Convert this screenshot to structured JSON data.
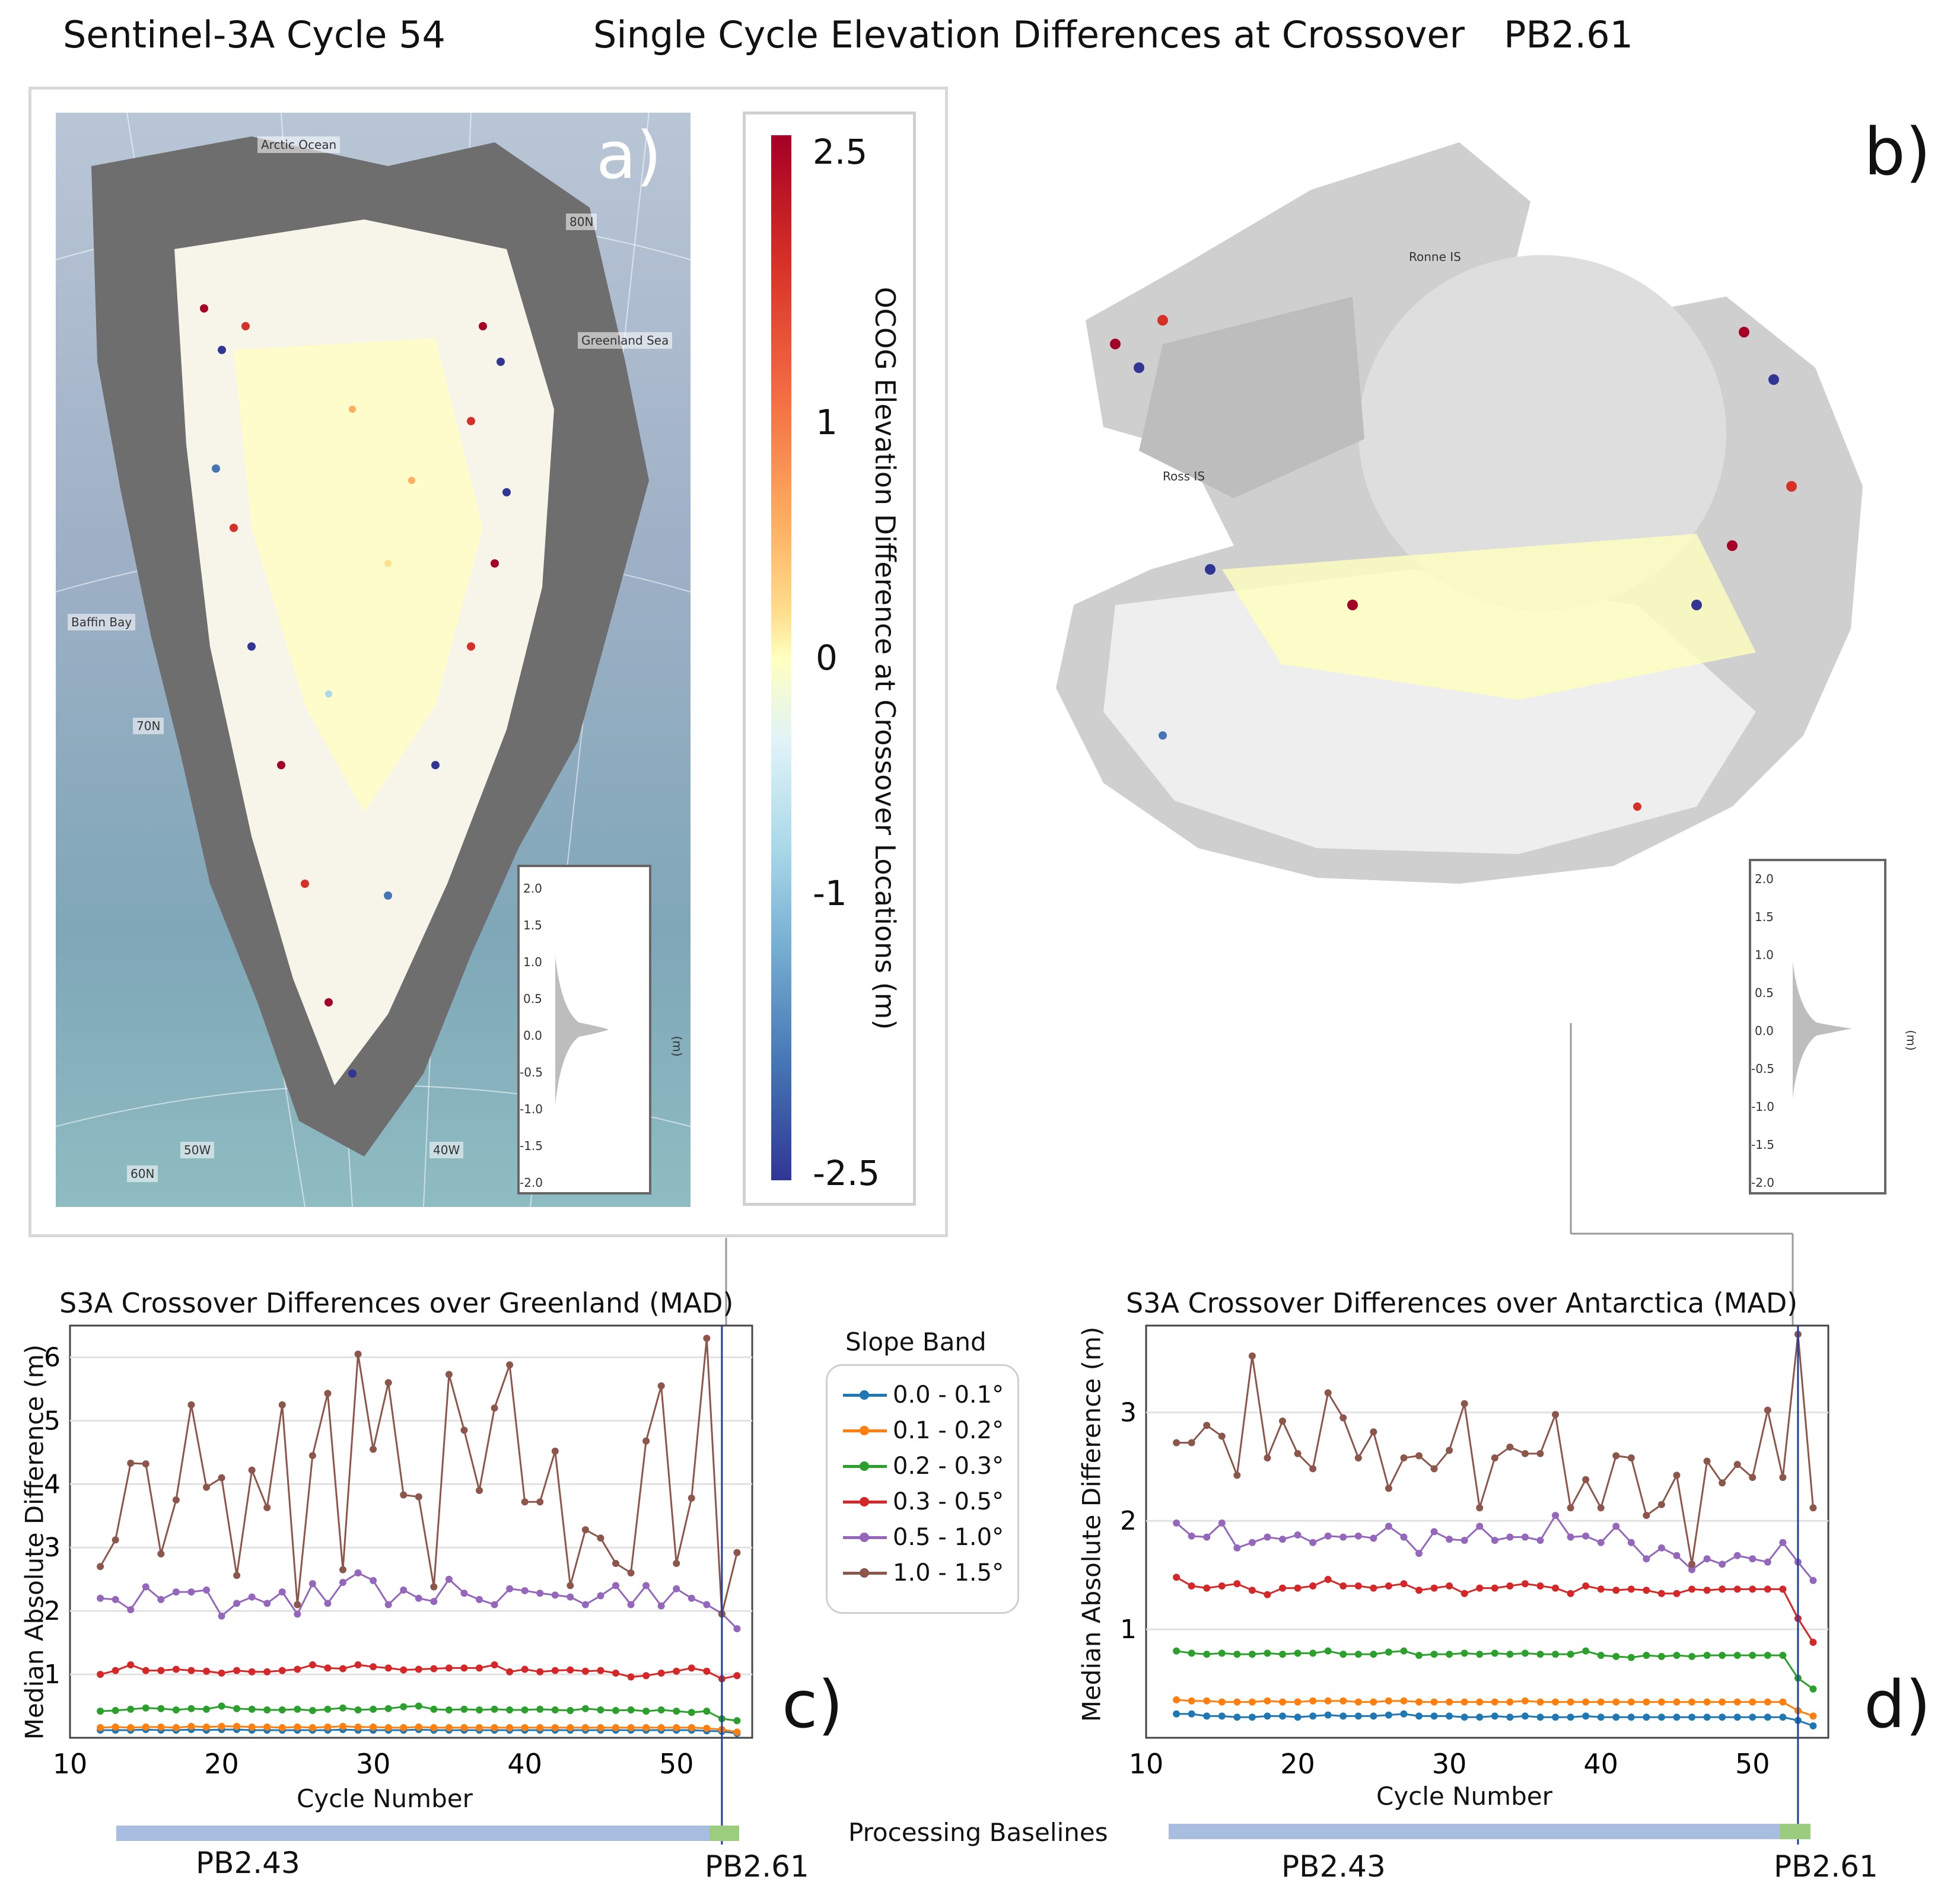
{
  "header": {
    "left": "Sentinel-3A Cycle 54",
    "center": "Single Cycle Elevation Differences at Crossover",
    "right": "PB2.61"
  },
  "panels": {
    "a": "a)",
    "b": "b)",
    "c": "c)",
    "d": "d)"
  },
  "colorbar": {
    "title": "OCOG Elevation Difference at Crossover Locations (m)",
    "ticks": [
      "2.5",
      "1",
      "0",
      "-1",
      "-2.5"
    ],
    "colors": [
      "#a50026",
      "#d73027",
      "#fdae61",
      "#ffffbf",
      "#abd9e9",
      "#4575b4",
      "#313695"
    ]
  },
  "map_a": {
    "labels": {
      "arctic": "Arctic Ocean",
      "greenland_sea": "Greenland Sea",
      "baffin": "Baffin Bay",
      "lat80": "80N",
      "lat70": "70N",
      "lat60": "60N",
      "lon50": "50W",
      "lon40": "40W"
    }
  },
  "map_b": {
    "labels": {
      "ronne": "Ronne IS",
      "ross": "Ross IS"
    }
  },
  "histogram": {
    "ticks": [
      "2.0",
      "1.5",
      "1.0",
      "0.5",
      "0.0",
      "-0.5",
      "-1.0",
      "-1.5",
      "-2.0"
    ],
    "unit": "(m)"
  },
  "legend": {
    "title": "Slope Band",
    "items": [
      {
        "label": "0.0 - 0.1°",
        "color": "#1f77b4"
      },
      {
        "label": "0.1 - 0.2°",
        "color": "#ff7f0e"
      },
      {
        "label": "0.2 - 0.3°",
        "color": "#2ca02c"
      },
      {
        "label": "0.3 - 0.5°",
        "color": "#d62728"
      },
      {
        "label": "0.5 - 1.0°",
        "color": "#9467bd"
      },
      {
        "label": "1.0 - 1.5°",
        "color": "#8c564b"
      }
    ]
  },
  "baselines": {
    "title": "Processing Baselines",
    "pb243": "PB2.43",
    "pb261": "PB2.61",
    "pb243_color": "#a9bde0",
    "pb261_color": "#9ccc7e"
  },
  "chart_data": [
    {
      "type": "line",
      "title": "S3A Crossover Differences over Greenland (MAD)",
      "xlabel": "Cycle Number",
      "ylabel": "Median Absolute Difference (m)",
      "xlim": [
        10,
        55
      ],
      "ylim": [
        0,
        6.5
      ],
      "xticks": [
        10,
        20,
        30,
        40,
        50
      ],
      "yticks": [
        1,
        2,
        3,
        4,
        5,
        6
      ],
      "baseline_change_cycle": 53,
      "x": [
        12,
        13,
        14,
        15,
        16,
        17,
        18,
        19,
        20,
        21,
        22,
        23,
        24,
        25,
        26,
        27,
        28,
        29,
        30,
        31,
        32,
        33,
        34,
        35,
        36,
        37,
        38,
        39,
        40,
        41,
        42,
        43,
        44,
        45,
        46,
        47,
        48,
        49,
        50,
        51,
        52,
        53,
        54
      ],
      "series": [
        {
          "name": "0.0 - 0.1°",
          "values": [
            0.12,
            0.12,
            0.12,
            0.13,
            0.12,
            0.12,
            0.13,
            0.12,
            0.13,
            0.13,
            0.12,
            0.12,
            0.12,
            0.12,
            0.12,
            0.12,
            0.13,
            0.12,
            0.12,
            0.12,
            0.12,
            0.13,
            0.12,
            0.12,
            0.12,
            0.12,
            0.12,
            0.12,
            0.12,
            0.12,
            0.12,
            0.12,
            0.12,
            0.12,
            0.12,
            0.12,
            0.12,
            0.12,
            0.12,
            0.12,
            0.11,
            0.1,
            0.07
          ]
        },
        {
          "name": "0.1 - 0.2°",
          "values": [
            0.16,
            0.17,
            0.16,
            0.17,
            0.17,
            0.16,
            0.18,
            0.17,
            0.18,
            0.18,
            0.17,
            0.17,
            0.16,
            0.17,
            0.16,
            0.17,
            0.18,
            0.17,
            0.17,
            0.16,
            0.16,
            0.17,
            0.16,
            0.16,
            0.16,
            0.16,
            0.16,
            0.16,
            0.16,
            0.16,
            0.16,
            0.16,
            0.16,
            0.16,
            0.16,
            0.16,
            0.16,
            0.16,
            0.16,
            0.16,
            0.15,
            0.13,
            0.09
          ]
        },
        {
          "name": "0.2 - 0.3°",
          "values": [
            0.42,
            0.43,
            0.45,
            0.47,
            0.46,
            0.44,
            0.46,
            0.45,
            0.5,
            0.46,
            0.45,
            0.44,
            0.44,
            0.45,
            0.43,
            0.45,
            0.47,
            0.44,
            0.45,
            0.46,
            0.49,
            0.5,
            0.45,
            0.44,
            0.45,
            0.44,
            0.45,
            0.44,
            0.44,
            0.45,
            0.44,
            0.43,
            0.46,
            0.44,
            0.43,
            0.44,
            0.42,
            0.44,
            0.42,
            0.4,
            0.42,
            0.3,
            0.27
          ]
        },
        {
          "name": "0.3 - 0.5°",
          "values": [
            1.0,
            1.06,
            1.15,
            1.06,
            1.06,
            1.08,
            1.06,
            1.05,
            1.02,
            1.06,
            1.04,
            1.04,
            1.06,
            1.08,
            1.15,
            1.1,
            1.09,
            1.15,
            1.12,
            1.1,
            1.07,
            1.08,
            1.09,
            1.1,
            1.1,
            1.1,
            1.15,
            1.04,
            1.08,
            1.04,
            1.06,
            1.07,
            1.05,
            1.06,
            1.02,
            0.96,
            0.98,
            1.02,
            1.05,
            1.1,
            1.05,
            0.93,
            0.98
          ]
        },
        {
          "name": "0.5 - 1.0°",
          "values": [
            2.2,
            2.18,
            2.02,
            2.38,
            2.18,
            2.3,
            2.3,
            2.33,
            1.92,
            2.12,
            2.22,
            2.12,
            2.3,
            1.95,
            2.43,
            2.12,
            2.45,
            2.6,
            2.48,
            2.1,
            2.33,
            2.2,
            2.15,
            2.5,
            2.28,
            2.18,
            2.1,
            2.35,
            2.32,
            2.28,
            2.25,
            2.22,
            2.1,
            2.24,
            2.4,
            2.1,
            2.4,
            2.08,
            2.35,
            2.2,
            2.1,
            1.96,
            1.72
          ]
        },
        {
          "name": "1.0 - 1.5°",
          "values": [
            2.7,
            3.12,
            4.33,
            4.32,
            2.9,
            3.75,
            5.25,
            3.95,
            4.1,
            2.56,
            4.22,
            3.63,
            5.25,
            2.1,
            4.45,
            5.43,
            2.65,
            6.05,
            4.55,
            5.6,
            3.83,
            3.8,
            2.38,
            5.73,
            4.85,
            3.9,
            5.2,
            5.88,
            3.72,
            3.72,
            4.52,
            2.4,
            3.28,
            3.15,
            2.75,
            2.6,
            4.68,
            5.55,
            2.75,
            3.78,
            6.3,
            1.95,
            2.92
          ]
        }
      ]
    },
    {
      "type": "line",
      "title": "S3A Crossover Differences over Antarctica (MAD)",
      "xlabel": "Cycle Number",
      "ylabel": "Median Absolute Difference (m)",
      "xlim": [
        10,
        55
      ],
      "ylim": [
        0,
        3.8
      ],
      "xticks": [
        10,
        20,
        30,
        40,
        50
      ],
      "yticks": [
        1,
        2,
        3
      ],
      "baseline_change_cycle": 53,
      "x": [
        12,
        13,
        14,
        15,
        16,
        17,
        18,
        19,
        20,
        21,
        22,
        23,
        24,
        25,
        26,
        27,
        28,
        29,
        30,
        31,
        32,
        33,
        34,
        35,
        36,
        37,
        38,
        39,
        40,
        41,
        42,
        43,
        44,
        45,
        46,
        47,
        48,
        49,
        50,
        51,
        52,
        53,
        54
      ],
      "series": [
        {
          "name": "0.0 - 0.1°",
          "values": [
            0.22,
            0.22,
            0.2,
            0.2,
            0.19,
            0.19,
            0.2,
            0.2,
            0.19,
            0.2,
            0.21,
            0.2,
            0.2,
            0.2,
            0.21,
            0.22,
            0.2,
            0.2,
            0.2,
            0.19,
            0.19,
            0.2,
            0.19,
            0.2,
            0.19,
            0.19,
            0.19,
            0.2,
            0.19,
            0.19,
            0.19,
            0.19,
            0.19,
            0.19,
            0.19,
            0.19,
            0.19,
            0.19,
            0.19,
            0.19,
            0.19,
            0.16,
            0.11
          ]
        },
        {
          "name": "0.1 - 0.2°",
          "values": [
            0.35,
            0.34,
            0.34,
            0.33,
            0.33,
            0.33,
            0.34,
            0.33,
            0.33,
            0.34,
            0.34,
            0.34,
            0.33,
            0.33,
            0.34,
            0.34,
            0.33,
            0.33,
            0.33,
            0.33,
            0.33,
            0.33,
            0.33,
            0.34,
            0.33,
            0.33,
            0.33,
            0.33,
            0.33,
            0.33,
            0.33,
            0.33,
            0.33,
            0.33,
            0.33,
            0.33,
            0.33,
            0.33,
            0.33,
            0.33,
            0.33,
            0.25,
            0.2
          ]
        },
        {
          "name": "0.2 - 0.3°",
          "values": [
            0.8,
            0.78,
            0.77,
            0.78,
            0.77,
            0.77,
            0.78,
            0.77,
            0.78,
            0.78,
            0.8,
            0.77,
            0.77,
            0.77,
            0.79,
            0.8,
            0.76,
            0.77,
            0.77,
            0.78,
            0.77,
            0.78,
            0.77,
            0.78,
            0.77,
            0.77,
            0.77,
            0.8,
            0.76,
            0.75,
            0.74,
            0.76,
            0.75,
            0.76,
            0.75,
            0.76,
            0.76,
            0.76,
            0.76,
            0.76,
            0.76,
            0.55,
            0.45
          ]
        },
        {
          "name": "0.3 - 0.5°",
          "values": [
            1.48,
            1.4,
            1.38,
            1.4,
            1.42,
            1.36,
            1.32,
            1.38,
            1.38,
            1.4,
            1.46,
            1.4,
            1.4,
            1.38,
            1.4,
            1.42,
            1.36,
            1.38,
            1.4,
            1.33,
            1.38,
            1.38,
            1.4,
            1.42,
            1.4,
            1.38,
            1.33,
            1.4,
            1.37,
            1.36,
            1.37,
            1.36,
            1.33,
            1.33,
            1.37,
            1.36,
            1.37,
            1.37,
            1.37,
            1.37,
            1.37,
            1.1,
            0.88
          ]
        },
        {
          "name": "0.5 - 1.0°",
          "values": [
            1.98,
            1.86,
            1.85,
            1.98,
            1.75,
            1.8,
            1.85,
            1.83,
            1.87,
            1.8,
            1.86,
            1.85,
            1.86,
            1.84,
            1.95,
            1.85,
            1.7,
            1.9,
            1.83,
            1.82,
            1.95,
            1.82,
            1.85,
            1.85,
            1.82,
            2.05,
            1.85,
            1.86,
            1.8,
            1.95,
            1.8,
            1.65,
            1.75,
            1.68,
            1.55,
            1.65,
            1.6,
            1.68,
            1.65,
            1.62,
            1.8,
            1.62,
            1.45
          ]
        },
        {
          "name": "1.0 - 1.5°",
          "values": [
            2.72,
            2.72,
            2.88,
            2.78,
            2.42,
            3.52,
            2.58,
            2.92,
            2.62,
            2.48,
            3.18,
            2.95,
            2.58,
            2.82,
            2.3,
            2.58,
            2.6,
            2.48,
            2.65,
            3.08,
            2.12,
            2.58,
            2.68,
            2.62,
            2.62,
            2.98,
            2.12,
            2.38,
            2.12,
            2.6,
            2.58,
            2.05,
            2.15,
            2.42,
            1.6,
            2.55,
            2.35,
            2.52,
            2.4,
            3.02,
            2.4,
            3.72,
            2.12
          ]
        }
      ]
    }
  ]
}
